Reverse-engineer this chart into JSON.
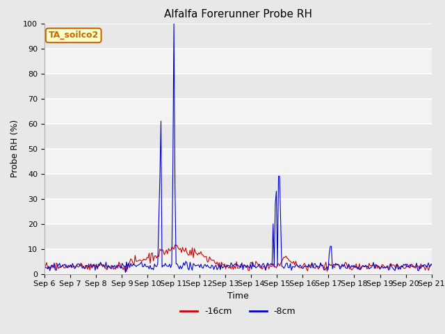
{
  "title": "Alfalfa Forerunner Probe RH",
  "xlabel": "Time",
  "ylabel": "Probe RH (%)",
  "ylim": [
    0,
    100
  ],
  "yticks": [
    0,
    10,
    20,
    30,
    40,
    50,
    60,
    70,
    80,
    90,
    100
  ],
  "xtick_labels": [
    "Sep 6",
    "Sep 7",
    "Sep 8",
    "Sep 9",
    "Sep 10",
    "Sep 11",
    "Sep 12",
    "Sep 13",
    "Sep 14",
    "Sep 15",
    "Sep 16",
    "Sep 17",
    "Sep 18",
    "Sep 19",
    "Sep 20",
    "Sep 21"
  ],
  "legend_label_red": "-16cm",
  "legend_label_blue": "-8cm",
  "color_red": "#cc0000",
  "color_blue": "#0000cc",
  "fig_bg_color": "#e8e8e8",
  "plot_bg_color": "#e8e8e8",
  "annotation_text": "TA_soilco2",
  "annotation_bg": "#ffffcc",
  "annotation_border": "#cc6600",
  "title_fontsize": 11,
  "axis_fontsize": 9,
  "tick_fontsize": 8,
  "legend_fontsize": 9
}
